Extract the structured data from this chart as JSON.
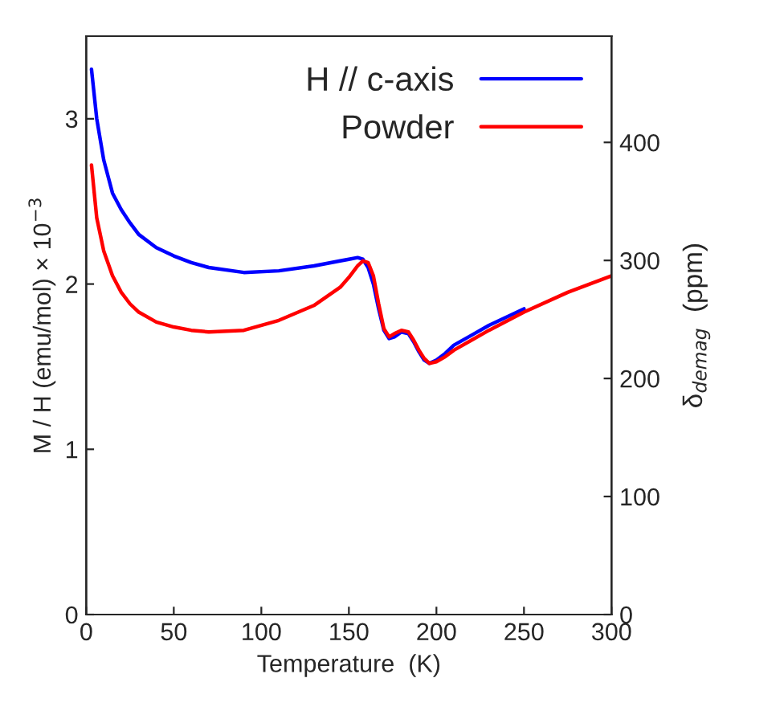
{
  "chart_data": {
    "type": "line",
    "xlabel": "Temperature  (K)",
    "ylabel": "M / H (emu/mol) × 10$^{−3}$",
    "y2label": "δ$_{demag}$  (ppm)",
    "xlim": [
      0,
      300
    ],
    "xticks": [
      0,
      50,
      100,
      150,
      200,
      250,
      300
    ],
    "ylim": [
      0,
      3.5
    ],
    "yticks": [
      0,
      1,
      2,
      3
    ],
    "y2lim": [
      0,
      490
    ],
    "y2ticks": [
      0,
      100,
      200,
      300,
      400
    ],
    "grid": false,
    "legend": "top right",
    "line_style": "solid",
    "marker": "none",
    "series": [
      {
        "name": "H // c-axis",
        "color": "#0000ff",
        "x": [
          3,
          6,
          10,
          15,
          20,
          25,
          30,
          40,
          50,
          60,
          70,
          90,
          110,
          130,
          145,
          150,
          155,
          158,
          161,
          164,
          167,
          170,
          173,
          176,
          180,
          184,
          187,
          190,
          193,
          196,
          200,
          205,
          210,
          220,
          230,
          250
        ],
        "values": [
          3.3,
          3.0,
          2.75,
          2.55,
          2.45,
          2.37,
          2.3,
          2.22,
          2.17,
          2.13,
          2.1,
          2.07,
          2.08,
          2.11,
          2.14,
          2.15,
          2.16,
          2.15,
          2.1,
          2.0,
          1.85,
          1.72,
          1.67,
          1.68,
          1.71,
          1.7,
          1.65,
          1.59,
          1.54,
          1.52,
          1.54,
          1.58,
          1.63,
          1.69,
          1.75,
          1.85
        ]
      },
      {
        "name": "Powder",
        "color": "#ff0000",
        "x": [
          3,
          6,
          10,
          15,
          20,
          25,
          30,
          40,
          50,
          60,
          70,
          90,
          110,
          130,
          145,
          150,
          155,
          158,
          161,
          164,
          167,
          170,
          173,
          176,
          180,
          184,
          187,
          190,
          193,
          196,
          200,
          205,
          210,
          220,
          230,
          250,
          275,
          300
        ],
        "values": [
          2.72,
          2.4,
          2.2,
          2.05,
          1.95,
          1.88,
          1.83,
          1.77,
          1.74,
          1.72,
          1.71,
          1.72,
          1.78,
          1.87,
          1.98,
          2.04,
          2.11,
          2.14,
          2.13,
          2.05,
          1.88,
          1.73,
          1.68,
          1.7,
          1.72,
          1.71,
          1.66,
          1.6,
          1.55,
          1.52,
          1.53,
          1.56,
          1.6,
          1.66,
          1.72,
          1.83,
          1.95,
          2.05
        ]
      }
    ]
  }
}
